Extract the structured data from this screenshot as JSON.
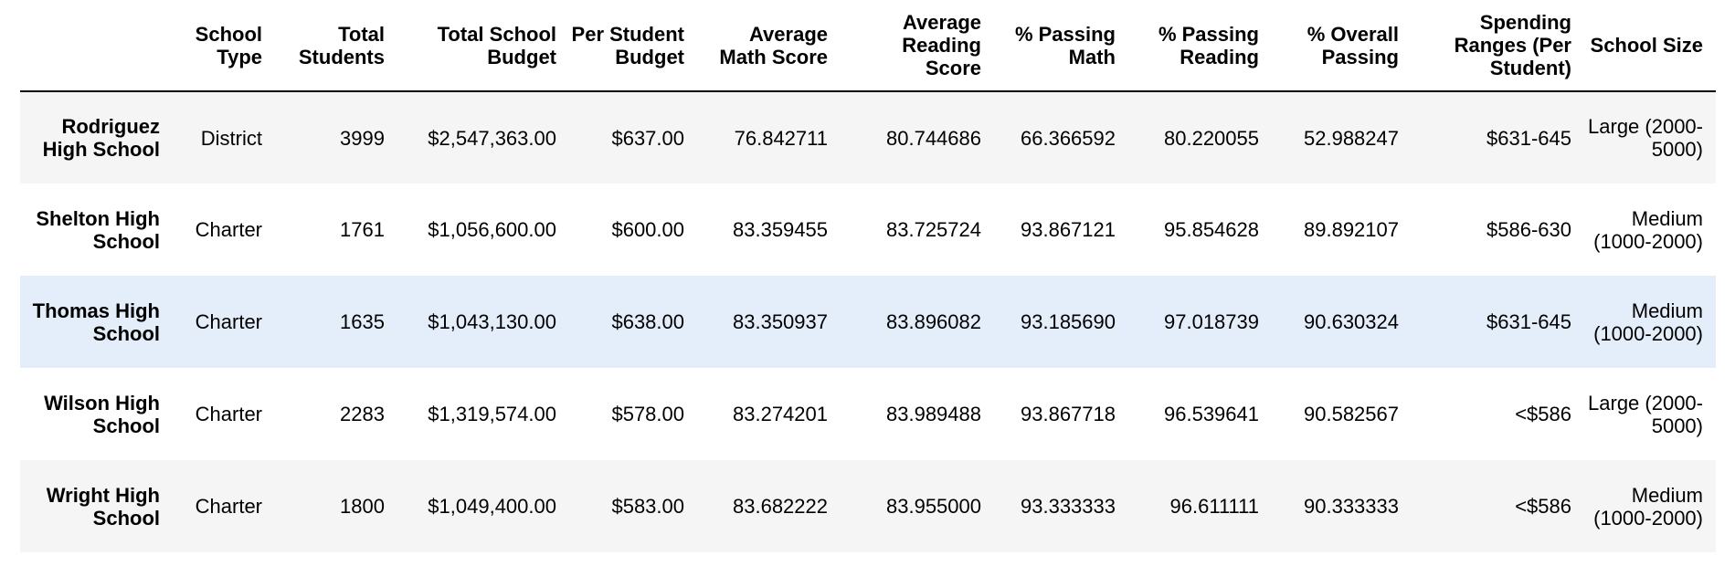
{
  "columns": {
    "school_type": "School Type",
    "total_students": "Total Students",
    "total_budget": "Total School Budget",
    "per_student_budget": "Per Student Budget",
    "avg_math": "Average Math Score",
    "avg_reading": "Average Reading Score",
    "pct_math": "% Passing Math",
    "pct_reading": "% Passing Reading",
    "pct_overall": "% Overall Passing",
    "spending_range": "Spending Ranges (Per Student)",
    "school_size": "School Size"
  },
  "rows": [
    {
      "school": "Rodriguez High School",
      "type": "District",
      "students": "3999",
      "budget": "$2,547,363.00",
      "per_student": "$637.00",
      "math": "76.842711",
      "reading": "80.744686",
      "pass_math": "66.366592",
      "pass_reading": "80.220055",
      "overall": "52.988247",
      "spending": "$631-645",
      "size": "Large (2000-5000)"
    },
    {
      "school": "Shelton High School",
      "type": "Charter",
      "students": "1761",
      "budget": "$1,056,600.00",
      "per_student": "$600.00",
      "math": "83.359455",
      "reading": "83.725724",
      "pass_math": "93.867121",
      "pass_reading": "95.854628",
      "overall": "89.892107",
      "spending": "$586-630",
      "size": "Medium (1000-2000)"
    },
    {
      "school": "Thomas High School",
      "type": "Charter",
      "students": "1635",
      "budget": "$1,043,130.00",
      "per_student": "$638.00",
      "math": "83.350937",
      "reading": "83.896082",
      "pass_math": "93.185690",
      "pass_reading": "97.018739",
      "overall": "90.630324",
      "spending": "$631-645",
      "size": "Medium (1000-2000)"
    },
    {
      "school": "Wilson High School",
      "type": "Charter",
      "students": "2283",
      "budget": "$1,319,574.00",
      "per_student": "$578.00",
      "math": "83.274201",
      "reading": "83.989488",
      "pass_math": "93.867718",
      "pass_reading": "96.539641",
      "overall": "90.582567",
      "spending": "<$586",
      "size": "Large (2000-5000)"
    },
    {
      "school": "Wright High School",
      "type": "Charter",
      "students": "1800",
      "budget": "$1,049,400.00",
      "per_student": "$583.00",
      "math": "83.682222",
      "reading": "83.955000",
      "pass_math": "93.333333",
      "pass_reading": "96.611111",
      "overall": "90.333333",
      "spending": "<$586",
      "size": "Medium (1000-2000)"
    }
  ],
  "colors": {
    "row_stripe": "#f5f5f5",
    "row_hover": "#e3eefa",
    "header_rule": "#000000"
  }
}
